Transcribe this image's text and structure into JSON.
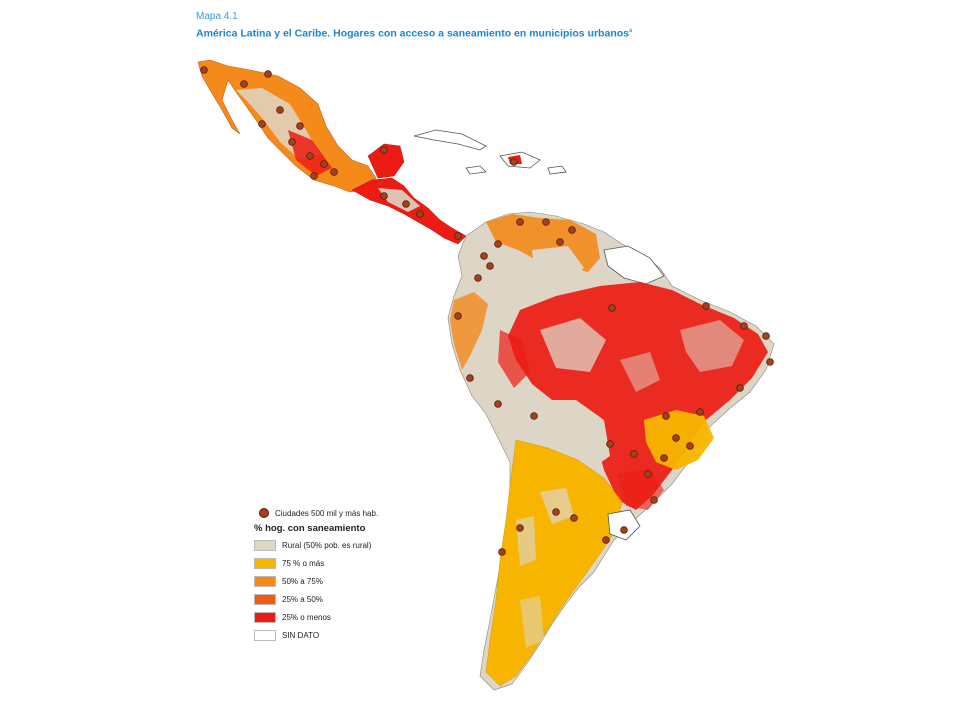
{
  "header": {
    "map_number": "Mapa 4.1",
    "title": "América Latina y el Caribe. Hogares con acceso a saneamiento en municipios urbanos",
    "title_note": "a"
  },
  "legend": {
    "city_label": "Ciudades 500 mil y más hab.",
    "city_color": "#a0411f",
    "title": "% hog. con saneamiento",
    "items": [
      {
        "label": "Rural (50% pob. es rural)",
        "color": "#ddd6c6"
      },
      {
        "label": "75 % o más",
        "color": "#f7b500"
      },
      {
        "label": "50% a 75%",
        "color": "#f38a1a"
      },
      {
        "label": "25% a 50%",
        "color": "#ef5b14"
      },
      {
        "label": "25% o menos",
        "color": "#ec1c14"
      },
      {
        "label": "SIN DATO",
        "color": "#ffffff"
      }
    ]
  }
}
